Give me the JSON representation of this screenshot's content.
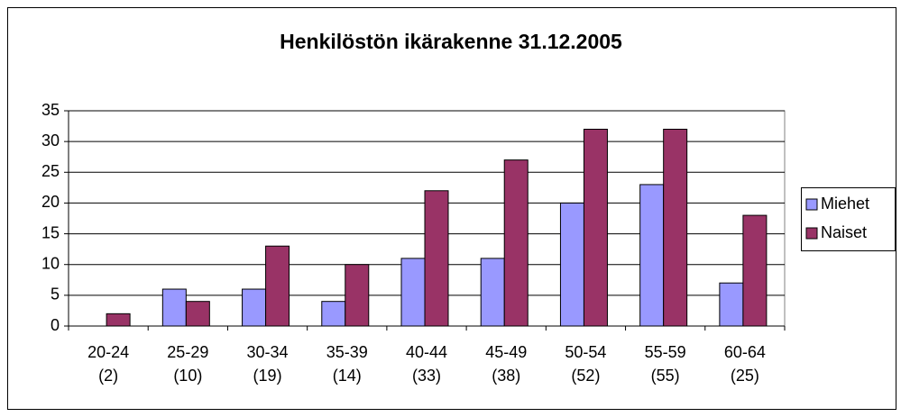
{
  "chart_data": {
    "type": "bar",
    "title": "Henkilöstön ikärakenne 31.12.2005",
    "categories": [
      [
        "20-24",
        "(2)"
      ],
      [
        "25-29",
        "(10)"
      ],
      [
        "30-34",
        "(19)"
      ],
      [
        "35-39",
        "(14)"
      ],
      [
        "40-44",
        "(33)"
      ],
      [
        "45-49",
        "(38)"
      ],
      [
        "50-54",
        "(52)"
      ],
      [
        "55-59",
        "(55)"
      ],
      [
        "60-64",
        "(25)"
      ]
    ],
    "series": [
      {
        "name": "Miehet",
        "color": "#9999ff",
        "values": [
          0,
          6,
          6,
          4,
          11,
          11,
          20,
          23,
          7
        ]
      },
      {
        "name": "Naiset",
        "color": "#993366",
        "values": [
          2,
          4,
          13,
          10,
          22,
          27,
          32,
          32,
          18
        ]
      }
    ],
    "ylim": [
      0,
      35
    ],
    "yticks": [
      0,
      5,
      10,
      15,
      20,
      25,
      30,
      35
    ],
    "grid": true,
    "legend": "right"
  }
}
